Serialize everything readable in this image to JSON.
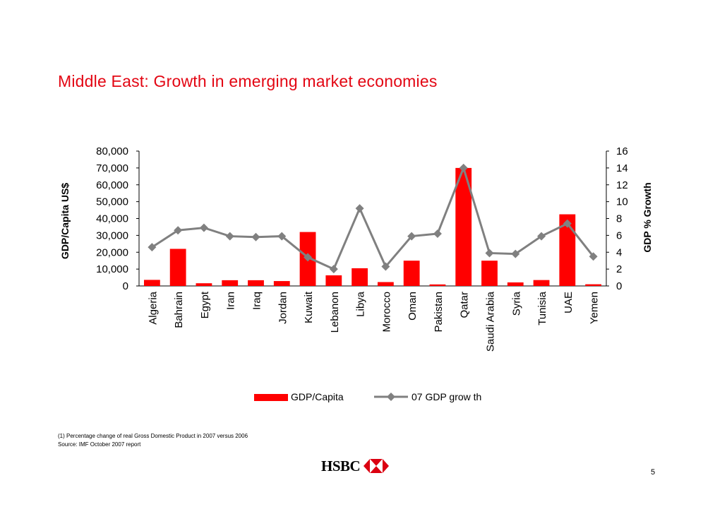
{
  "slide": {
    "title": "Middle East: Growth in emerging market economies",
    "footnote_1": "(1) Percentage change of real Gross Domestic Product in 2007 versus 2006",
    "footnote_2": "Source: IMF October 2007 report",
    "logo_text": "HSBC",
    "page_number": "5"
  },
  "colors": {
    "title": "#e30613",
    "bars": "#ff0000",
    "line": "#808080",
    "logo_red": "#db0011"
  },
  "chart_data": {
    "type": "bar+line",
    "categories": [
      "Algeria",
      "Bahrain",
      "Egypt",
      "Iran",
      "Iraq",
      "Jordan",
      "Kuwait",
      "Lebanon",
      "Libya",
      "Morocco",
      "Oman",
      "Pakistan",
      "Qatar",
      "Saudi Arabia",
      "Syria",
      "Tunisia",
      "UAE",
      "Yemen"
    ],
    "series": [
      {
        "name": "GDP/Capita",
        "type": "bar",
        "axis": "left",
        "values": [
          3600,
          22000,
          1600,
          3400,
          3400,
          2900,
          32000,
          6300,
          10500,
          2300,
          15000,
          900,
          70000,
          15000,
          2100,
          3500,
          42500,
          1000
        ]
      },
      {
        "name": "07 GDP grow th",
        "type": "line",
        "axis": "right",
        "values": [
          4.6,
          6.6,
          6.9,
          5.9,
          5.8,
          5.9,
          3.4,
          2.0,
          9.2,
          2.3,
          5.9,
          6.2,
          14.0,
          3.9,
          3.8,
          5.9,
          7.4,
          3.5
        ]
      }
    ],
    "ylabel": "GDP/Capita US$",
    "y2label": "GDP % Growth",
    "ylim": [
      0,
      80000
    ],
    "y2lim": [
      0,
      16
    ],
    "yticks": [
      "80,000",
      "70,000",
      "60,000",
      "50,000",
      "40,000",
      "30,000",
      "20,000",
      "10,000",
      "0"
    ],
    "y2ticks": [
      "16",
      "14",
      "12",
      "10",
      "8",
      "6",
      "4",
      "2",
      "0"
    ],
    "grid": false,
    "legend_position": "bottom"
  }
}
